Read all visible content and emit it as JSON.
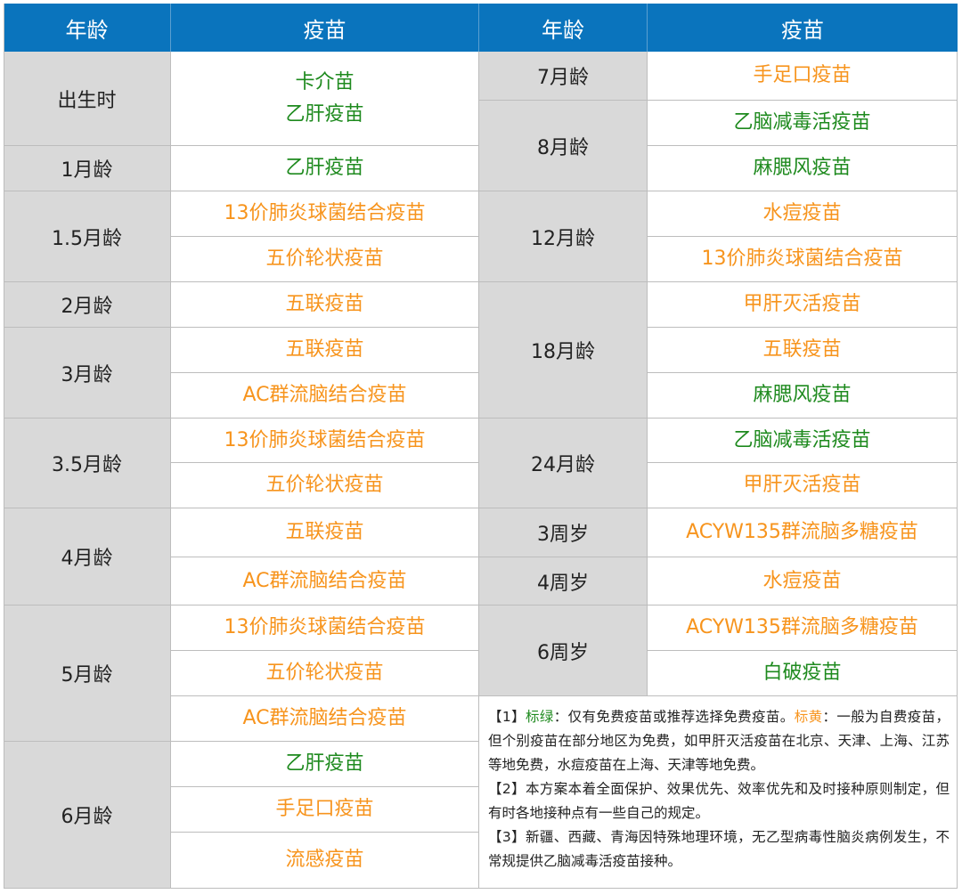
{
  "header": {
    "age_label": "年龄",
    "vaccine_label": "疫苗"
  },
  "colors": {
    "header": "#0a74bd",
    "age_bg": "#d9d9d9",
    "green": "#1e8a1e",
    "orange": "#f7941d"
  },
  "left_groups": [
    {
      "age": "出生时",
      "vaccines": [
        {
          "name": "卡介苗\n乙肝疫苗",
          "color": "green"
        }
      ]
    },
    {
      "age": "1月龄",
      "vaccines": [
        {
          "name": "乙肝疫苗",
          "color": "green"
        }
      ]
    },
    {
      "age": "1.5月龄",
      "vaccines": [
        {
          "name": "13价肺炎球菌结合疫苗",
          "color": "orange"
        },
        {
          "name": "五价轮状疫苗",
          "color": "orange"
        }
      ]
    },
    {
      "age": "2月龄",
      "vaccines": [
        {
          "name": "五联疫苗",
          "color": "orange"
        }
      ]
    },
    {
      "age": "3月龄",
      "vaccines": [
        {
          "name": "五联疫苗",
          "color": "orange"
        },
        {
          "name": "AC群流脑结合疫苗",
          "color": "orange"
        }
      ]
    },
    {
      "age": "3.5月龄",
      "vaccines": [
        {
          "name": "13价肺炎球菌结合疫苗",
          "color": "orange"
        },
        {
          "name": "五价轮状疫苗",
          "color": "orange"
        }
      ]
    },
    {
      "age": "4月龄",
      "vaccines": [
        {
          "name": "五联疫苗",
          "color": "orange"
        },
        {
          "name": "AC群流脑结合疫苗",
          "color": "orange"
        }
      ]
    },
    {
      "age": "5月龄",
      "vaccines": [
        {
          "name": "13价肺炎球菌结合疫苗",
          "color": "orange"
        },
        {
          "name": "五价轮状疫苗",
          "color": "orange"
        },
        {
          "name": "AC群流脑结合疫苗",
          "color": "orange"
        }
      ]
    },
    {
      "age": "6月龄",
      "vaccines": [
        {
          "name": "乙肝疫苗",
          "color": "green"
        },
        {
          "name": "手足口疫苗",
          "color": "orange"
        },
        {
          "name": "流感疫苗",
          "color": "orange"
        }
      ]
    }
  ],
  "right_groups": [
    {
      "age": "7月龄",
      "vaccines": [
        {
          "name": "手足口疫苗",
          "color": "orange"
        }
      ]
    },
    {
      "age": "8月龄",
      "vaccines": [
        {
          "name": "乙脑减毒活疫苗",
          "color": "green"
        },
        {
          "name": "麻腮风疫苗",
          "color": "green"
        }
      ]
    },
    {
      "age": "12月龄",
      "vaccines": [
        {
          "name": "水痘疫苗",
          "color": "orange"
        },
        {
          "name": "13价肺炎球菌结合疫苗",
          "color": "orange"
        }
      ]
    },
    {
      "age": "18月龄",
      "vaccines": [
        {
          "name": "甲肝灭活疫苗",
          "color": "orange"
        },
        {
          "name": "五联疫苗",
          "color": "orange"
        },
        {
          "name": "麻腮风疫苗",
          "color": "green"
        }
      ]
    },
    {
      "age": "24月龄",
      "vaccines": [
        {
          "name": "乙脑减毒活疫苗",
          "color": "green"
        },
        {
          "name": "甲肝灭活疫苗",
          "color": "orange"
        }
      ]
    },
    {
      "age": "3周岁",
      "vaccines": [
        {
          "name": "ACYW135群流脑多糖疫苗",
          "color": "orange"
        }
      ]
    },
    {
      "age": "4周岁",
      "vaccines": [
        {
          "name": "水痘疫苗",
          "color": "orange"
        }
      ]
    },
    {
      "age": "6周岁",
      "vaccines": [
        {
          "name": "ACYW135群流脑多糖疫苗",
          "color": "orange"
        },
        {
          "name": "白破疫苗",
          "color": "green"
        }
      ]
    }
  ],
  "notes": {
    "n1_prefix": "【1】",
    "n1_green_label": "标绿",
    "n1_green_text": "：仅有免费疫苗或推荐选择免费疫苗。",
    "n1_orange_label": "标黄",
    "n1_orange_text": "：一般为自费疫苗，但个别疫苗在部分地区为免费，如甲肝灭活疫苗在北京、天津、上海、江苏等地免费，水痘疫苗在上海、天津等地免费。",
    "n2": "【2】本方案本着全面保护、效果优先、效率优先和及时接种原则制定，但有时各地接种点有一些自己的规定。",
    "n3": "【3】新疆、西藏、青海因特殊地理环境，无乙型病毒性脑炎病例发生，不常规提供乙脑减毒活疫苗接种。"
  }
}
